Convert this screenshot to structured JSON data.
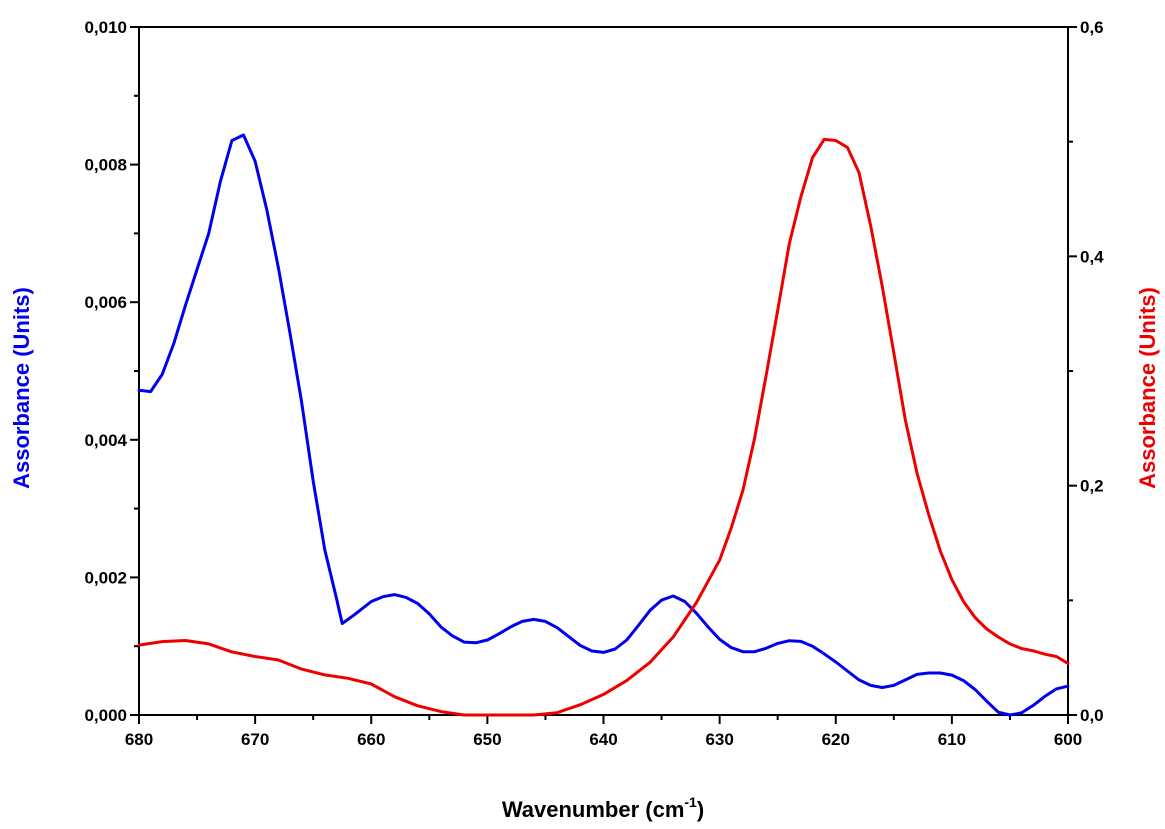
{
  "chart_data": {
    "type": "line",
    "xlabel": "Wavenumber (cm",
    "xlabel_sup": "-1",
    "xlabel_close": ")",
    "ylabel_left": "Assorbance (Units)",
    "ylabel_right": "Assorbance (Units)",
    "xlim": [
      680,
      600
    ],
    "ylim_left": [
      0,
      0.01
    ],
    "ylim_right": [
      0,
      0.6
    ],
    "x_ticks": [
      "680",
      "670",
      "660",
      "650",
      "640",
      "630",
      "620",
      "610",
      "600"
    ],
    "y_left_ticks": [
      "0,000",
      "0,002",
      "0,004",
      "0,006",
      "0,008",
      "0,010"
    ],
    "y_right_ticks": [
      "0,0",
      "0,2",
      "0,4",
      "0,6"
    ],
    "grid": false,
    "series": [
      {
        "axis": "left",
        "color": "#0000ee",
        "x": [
          680,
          679,
          678,
          677,
          676,
          675,
          674,
          673,
          672,
          671,
          670,
          669,
          668,
          667,
          666,
          665,
          664,
          663,
          662.5,
          661.5,
          660,
          659,
          658,
          657,
          656,
          655,
          654,
          653,
          652,
          651,
          650,
          649,
          648,
          647,
          646,
          645,
          644,
          643,
          642,
          641,
          640,
          639,
          638,
          637,
          636,
          635,
          634,
          633,
          632,
          631,
          630,
          629,
          628,
          627,
          626,
          625,
          624,
          623,
          622,
          621,
          620,
          619,
          618,
          617,
          616,
          615,
          614,
          613,
          612,
          611,
          610,
          609,
          608,
          607,
          606,
          605,
          604,
          603,
          602,
          601,
          600
        ],
        "y": [
          0.00472,
          0.0047,
          0.00495,
          0.0054,
          0.00595,
          0.00648,
          0.007,
          0.00775,
          0.00835,
          0.00843,
          0.00805,
          0.00735,
          0.0065,
          0.00555,
          0.00455,
          0.0034,
          0.0024,
          0.0017,
          0.00133,
          0.00145,
          0.00165,
          0.00172,
          0.00175,
          0.00171,
          0.00162,
          0.00147,
          0.00128,
          0.00115,
          0.00106,
          0.00105,
          0.00109,
          0.00118,
          0.00128,
          0.00136,
          0.00139,
          0.00136,
          0.00127,
          0.00114,
          0.00101,
          0.00093,
          0.00091,
          0.00096,
          0.00109,
          0.0013,
          0.00152,
          0.00167,
          0.00173,
          0.00165,
          0.00148,
          0.00128,
          0.0011,
          0.00098,
          0.00092,
          0.00092,
          0.00097,
          0.00104,
          0.00108,
          0.00107,
          0.001,
          0.00089,
          0.00077,
          0.00064,
          0.00051,
          0.00043,
          0.0004,
          0.00043,
          0.00051,
          0.00059,
          0.00061,
          0.00061,
          0.00058,
          0.0005,
          0.00037,
          0.0002,
          4e-05,
          0.0,
          3e-05,
          0.00014,
          0.00027,
          0.00038,
          0.00042
        ]
      },
      {
        "axis": "right",
        "color": "#ee0000",
        "x": [
          680,
          678,
          676,
          674,
          672,
          670,
          668,
          666,
          664,
          662,
          660,
          658,
          656,
          654,
          652,
          650,
          648,
          646,
          644,
          642,
          640,
          638,
          636,
          634,
          632,
          630,
          629,
          628,
          627,
          626,
          625,
          624,
          623,
          622,
          621,
          620,
          619,
          618,
          617,
          616,
          615,
          614,
          613,
          612,
          611,
          610,
          609,
          608,
          607,
          606,
          605,
          604,
          603,
          602,
          601,
          600
        ],
        "y": [
          0.061,
          0.064,
          0.065,
          0.062,
          0.055,
          0.051,
          0.048,
          0.04,
          0.035,
          0.032,
          0.027,
          0.016,
          0.008,
          0.003,
          0.0,
          0.0,
          0.0,
          0.0,
          0.002,
          0.009,
          0.018,
          0.03,
          0.046,
          0.068,
          0.098,
          0.135,
          0.163,
          0.196,
          0.241,
          0.296,
          0.353,
          0.411,
          0.452,
          0.486,
          0.502,
          0.501,
          0.495,
          0.473,
          0.427,
          0.374,
          0.316,
          0.257,
          0.211,
          0.175,
          0.143,
          0.118,
          0.099,
          0.085,
          0.075,
          0.068,
          0.062,
          0.058,
          0.056,
          0.053,
          0.051,
          0.045
        ]
      }
    ]
  }
}
